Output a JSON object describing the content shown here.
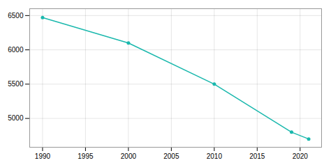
{
  "chart_data": {
    "type": "line",
    "x": [
      1990,
      2000,
      2010,
      2019,
      2021
    ],
    "values": [
      6470,
      6100,
      5500,
      4800,
      4700
    ],
    "color": "#1ab8ad",
    "marker": "circle",
    "xlim": [
      1988.5,
      2022.5
    ],
    "ylim": [
      4580,
      6600
    ],
    "xticks": [
      1990,
      1995,
      2000,
      2005,
      2010,
      2015,
      2020
    ],
    "yticks": [
      5000,
      5500,
      6000,
      6500
    ],
    "grid": true
  }
}
